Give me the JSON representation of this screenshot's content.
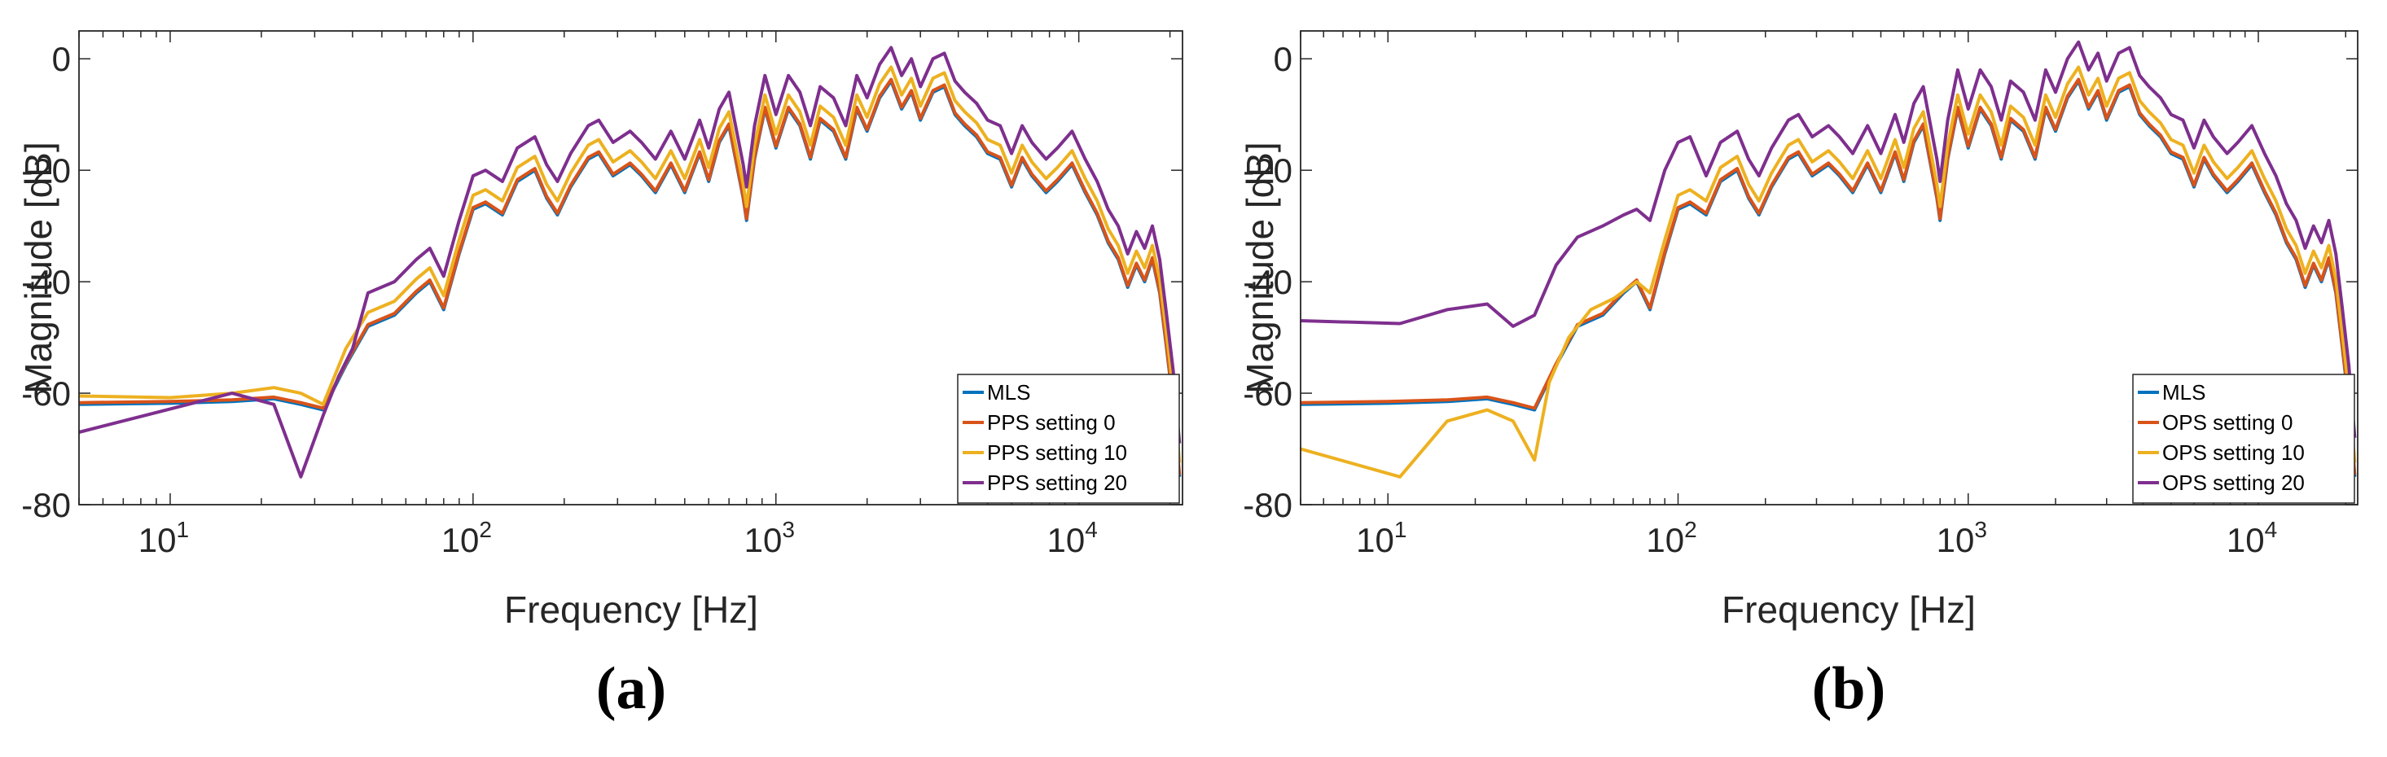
{
  "colors": {
    "MLS": "#0072BD",
    "setting0": "#D95319",
    "setting10": "#EDB120",
    "setting20": "#7E2F8E"
  },
  "chart_data": [
    {
      "panel": "(a)",
      "type": "line",
      "xscale": "log",
      "xlim": [
        5,
        22000
      ],
      "ylim": [
        -80,
        5
      ],
      "xlabel": "Frequency [Hz]",
      "ylabel": "Magnitude [dB]",
      "xticks": [
        {
          "base": "10",
          "exp": "1",
          "value": 10
        },
        {
          "base": "10",
          "exp": "2",
          "value": 100
        },
        {
          "base": "10",
          "exp": "3",
          "value": 1000
        },
        {
          "base": "10",
          "exp": "4",
          "value": 10000
        }
      ],
      "yticks": [
        "0",
        "-20",
        "-40",
        "-60",
        "-80"
      ],
      "ytick_values": [
        0,
        -20,
        -40,
        -60,
        -80
      ],
      "legend_position": "lower-right",
      "series": [
        {
          "name": "MLS",
          "color_key": "MLS",
          "offset": 0
        },
        {
          "name": "PPS setting 0",
          "color_key": "setting0",
          "offset": 0.3
        },
        {
          "name": "PPS setting 10",
          "color_key": "setting10",
          "offset": 2.5
        },
        {
          "name": "PPS setting 20",
          "color_key": "setting20",
          "offset": 6
        }
      ],
      "base_curve": [
        [
          5,
          -62
        ],
        [
          10,
          -61.8
        ],
        [
          16,
          -61.5
        ],
        [
          22,
          -61
        ],
        [
          27,
          -62
        ],
        [
          32,
          -63
        ],
        [
          38,
          -55
        ],
        [
          45,
          -48
        ],
        [
          55,
          -46
        ],
        [
          65,
          -42
        ],
        [
          72,
          -40
        ],
        [
          80,
          -45
        ],
        [
          90,
          -35
        ],
        [
          100,
          -27
        ],
        [
          110,
          -26
        ],
        [
          125,
          -28
        ],
        [
          140,
          -22
        ],
        [
          160,
          -20
        ],
        [
          175,
          -25
        ],
        [
          190,
          -28
        ],
        [
          210,
          -23
        ],
        [
          240,
          -18
        ],
        [
          260,
          -17
        ],
        [
          290,
          -21
        ],
        [
          330,
          -19
        ],
        [
          360,
          -21
        ],
        [
          400,
          -24
        ],
        [
          450,
          -19
        ],
        [
          500,
          -24
        ],
        [
          560,
          -17
        ],
        [
          600,
          -22
        ],
        [
          650,
          -15
        ],
        [
          700,
          -12
        ],
        [
          780,
          -25
        ],
        [
          800,
          -29
        ],
        [
          850,
          -18
        ],
        [
          920,
          -9
        ],
        [
          1000,
          -16
        ],
        [
          1100,
          -9
        ],
        [
          1200,
          -12
        ],
        [
          1300,
          -18
        ],
        [
          1400,
          -11
        ],
        [
          1550,
          -13
        ],
        [
          1700,
          -18
        ],
        [
          1850,
          -9
        ],
        [
          2000,
          -13
        ],
        [
          2200,
          -7
        ],
        [
          2400,
          -4
        ],
        [
          2600,
          -9
        ],
        [
          2800,
          -6
        ],
        [
          3000,
          -11
        ],
        [
          3300,
          -6
        ],
        [
          3600,
          -5
        ],
        [
          3900,
          -10
        ],
        [
          4200,
          -12
        ],
        [
          4600,
          -14
        ],
        [
          5000,
          -17
        ],
        [
          5500,
          -18
        ],
        [
          6000,
          -23
        ],
        [
          6500,
          -18
        ],
        [
          7000,
          -21
        ],
        [
          7800,
          -24
        ],
        [
          8500,
          -22
        ],
        [
          9500,
          -19
        ],
        [
          10500,
          -24
        ],
        [
          11500,
          -28
        ],
        [
          12500,
          -33
        ],
        [
          13500,
          -36
        ],
        [
          14500,
          -41
        ],
        [
          15500,
          -37
        ],
        [
          16500,
          -40
        ],
        [
          17500,
          -36
        ],
        [
          18500,
          -42
        ],
        [
          19500,
          -52
        ],
        [
          20500,
          -62
        ],
        [
          21500,
          -75
        ]
      ],
      "outlier_curve": {
        "series": "PPS setting 20",
        "points": [
          [
            5,
            -67
          ],
          [
            16,
            -60
          ],
          [
            22,
            -62
          ],
          [
            27,
            -75
          ],
          [
            32,
            -64
          ],
          [
            36,
            -57
          ],
          [
            40,
            -52
          ]
        ]
      },
      "low_curve": {
        "series": "PPS setting 10",
        "points": [
          [
            5,
            -60.5
          ],
          [
            10,
            -60.8
          ],
          [
            16,
            -60
          ],
          [
            22,
            -59
          ],
          [
            27,
            -60
          ],
          [
            32,
            -62
          ],
          [
            38,
            -52
          ]
        ]
      }
    },
    {
      "panel": "(b)",
      "type": "line",
      "xscale": "log",
      "xlim": [
        5,
        22000
      ],
      "ylim": [
        -80,
        5
      ],
      "xlabel": "Frequency [Hz]",
      "ylabel": "Magnitude [dB]",
      "xticks": [
        {
          "base": "10",
          "exp": "1",
          "value": 10
        },
        {
          "base": "10",
          "exp": "2",
          "value": 100
        },
        {
          "base": "10",
          "exp": "3",
          "value": 1000
        },
        {
          "base": "10",
          "exp": "4",
          "value": 10000
        }
      ],
      "yticks": [
        "0",
        "-20",
        "-40",
        "-60",
        "-80"
      ],
      "ytick_values": [
        0,
        -20,
        -40,
        -60,
        -80
      ],
      "legend_position": "lower-right",
      "series": [
        {
          "name": "MLS",
          "color_key": "MLS",
          "offset": 0
        },
        {
          "name": "OPS setting 0",
          "color_key": "setting0",
          "offset": 0.3
        },
        {
          "name": "OPS setting 10",
          "color_key": "setting10",
          "offset": 2.5
        },
        {
          "name": "OPS setting 20",
          "color_key": "setting20",
          "offset": 7
        }
      ],
      "base_curve": [
        [
          5,
          -62
        ],
        [
          10,
          -61.8
        ],
        [
          16,
          -61.5
        ],
        [
          22,
          -61
        ],
        [
          27,
          -62
        ],
        [
          32,
          -63
        ],
        [
          38,
          -55
        ],
        [
          45,
          -48
        ],
        [
          55,
          -46
        ],
        [
          65,
          -42
        ],
        [
          72,
          -40
        ],
        [
          80,
          -45
        ],
        [
          90,
          -35
        ],
        [
          100,
          -27
        ],
        [
          110,
          -26
        ],
        [
          125,
          -28
        ],
        [
          140,
          -22
        ],
        [
          160,
          -20
        ],
        [
          175,
          -25
        ],
        [
          190,
          -28
        ],
        [
          210,
          -23
        ],
        [
          240,
          -18
        ],
        [
          260,
          -17
        ],
        [
          290,
          -21
        ],
        [
          330,
          -19
        ],
        [
          360,
          -21
        ],
        [
          400,
          -24
        ],
        [
          450,
          -19
        ],
        [
          500,
          -24
        ],
        [
          560,
          -17
        ],
        [
          600,
          -22
        ],
        [
          650,
          -15
        ],
        [
          700,
          -12
        ],
        [
          780,
          -25
        ],
        [
          800,
          -29
        ],
        [
          850,
          -18
        ],
        [
          920,
          -9
        ],
        [
          1000,
          -16
        ],
        [
          1100,
          -9
        ],
        [
          1200,
          -12
        ],
        [
          1300,
          -18
        ],
        [
          1400,
          -11
        ],
        [
          1550,
          -13
        ],
        [
          1700,
          -18
        ],
        [
          1850,
          -9
        ],
        [
          2000,
          -13
        ],
        [
          2200,
          -7
        ],
        [
          2400,
          -4
        ],
        [
          2600,
          -9
        ],
        [
          2800,
          -6
        ],
        [
          3000,
          -11
        ],
        [
          3300,
          -6
        ],
        [
          3600,
          -5
        ],
        [
          3900,
          -10
        ],
        [
          4200,
          -12
        ],
        [
          4600,
          -14
        ],
        [
          5000,
          -17
        ],
        [
          5500,
          -18
        ],
        [
          6000,
          -23
        ],
        [
          6500,
          -18
        ],
        [
          7000,
          -21
        ],
        [
          7800,
          -24
        ],
        [
          8500,
          -22
        ],
        [
          9500,
          -19
        ],
        [
          10500,
          -24
        ],
        [
          11500,
          -28
        ],
        [
          12500,
          -33
        ],
        [
          13500,
          -36
        ],
        [
          14500,
          -41
        ],
        [
          15500,
          -37
        ],
        [
          16500,
          -40
        ],
        [
          17500,
          -36
        ],
        [
          18500,
          -42
        ],
        [
          19500,
          -52
        ],
        [
          20500,
          -62
        ],
        [
          21500,
          -75
        ]
      ],
      "outlier_curve": {
        "series": "OPS setting 20",
        "points": [
          [
            5,
            -47
          ],
          [
            11,
            -47.5
          ],
          [
            16,
            -45
          ],
          [
            22,
            -44
          ],
          [
            27,
            -48
          ],
          [
            32,
            -46
          ],
          [
            38,
            -37
          ],
          [
            45,
            -32
          ],
          [
            55,
            -30
          ],
          [
            65,
            -28
          ],
          [
            72,
            -27
          ],
          [
            80,
            -29
          ],
          [
            90,
            -20
          ],
          [
            100,
            -15
          ],
          [
            110,
            -14
          ]
        ]
      },
      "low_curve": {
        "series": "OPS setting 10",
        "points": [
          [
            5,
            -70
          ],
          [
            11,
            -75
          ],
          [
            16,
            -65
          ],
          [
            22,
            -63
          ],
          [
            27,
            -65
          ],
          [
            32,
            -72
          ],
          [
            36,
            -58
          ],
          [
            42,
            -50
          ],
          [
            50,
            -45
          ],
          [
            60,
            -43
          ],
          [
            72,
            -40
          ],
          [
            80,
            -42
          ]
        ]
      }
    }
  ],
  "panel_labels": {
    "a": "(a)",
    "b": "(b)"
  }
}
